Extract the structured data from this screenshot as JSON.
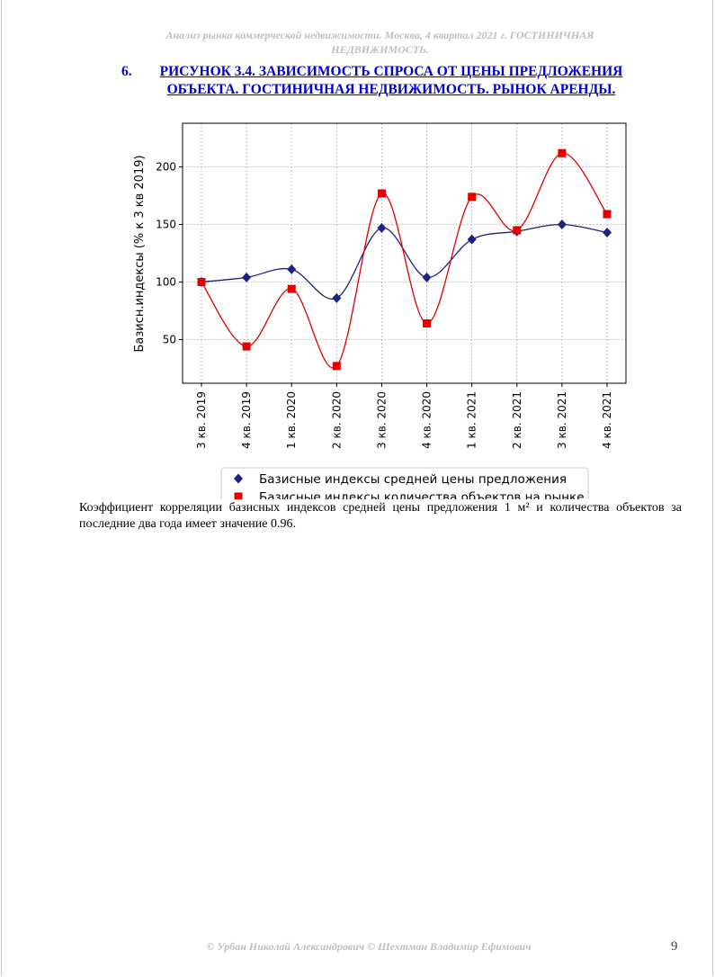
{
  "header": {
    "text": "Анализ рынка коммерческой недвижимости.   Москва, 4 квартал 2021 г.   ГОСТИНИЧНАЯ НЕДВИЖИМОСТЬ."
  },
  "caption": {
    "number": "6.",
    "title": "РИСУНОК 3.4. ЗАВИСИМОСТЬ СПРОСА ОТ ЦЕНЫ ПРЕДЛОЖЕНИЯ ОБЪЕКТА.  ГОСТИНИЧНАЯ НЕДВИЖИМОСТЬ. РЫНОК АРЕНДЫ."
  },
  "chart_data": {
    "type": "line",
    "ylabel": "Базисн.индексы (% к 3 кв 2019)",
    "xlabel": "",
    "ylim": [
      12,
      238
    ],
    "yticks": [
      50,
      100,
      150,
      200
    ],
    "grid": true,
    "legend_position": "bottom",
    "categories": [
      "3 кв. 2019",
      "4 кв. 2019",
      "1 кв. 2020",
      "2 кв. 2020",
      "3 кв. 2020",
      "4 кв. 2020",
      "1 кв. 2021",
      "2 кв. 2021",
      "3 кв. 2021",
      "4 кв. 2021"
    ],
    "series": [
      {
        "name": "Базисные индексы средней цены предложения",
        "color": "#1a237e",
        "marker": "diamond",
        "values": [
          100,
          104,
          111,
          86,
          147,
          104,
          137,
          144,
          150,
          143
        ]
      },
      {
        "name": "Базисные индексы количества объектов на рынке",
        "color": "#e00000",
        "marker": "square",
        "values": [
          100,
          44,
          94,
          27,
          177,
          64,
          174,
          145,
          212,
          159
        ]
      }
    ]
  },
  "body_text": "Коэффициент корреляции базисных индексов средней цены предложения 1 м² и количества объектов за последние два года имеет значение 0.96.",
  "footer": {
    "text": "© Урбан Николай Александрович   © Шехтман Владимир Ефимович",
    "page_number": "9"
  }
}
